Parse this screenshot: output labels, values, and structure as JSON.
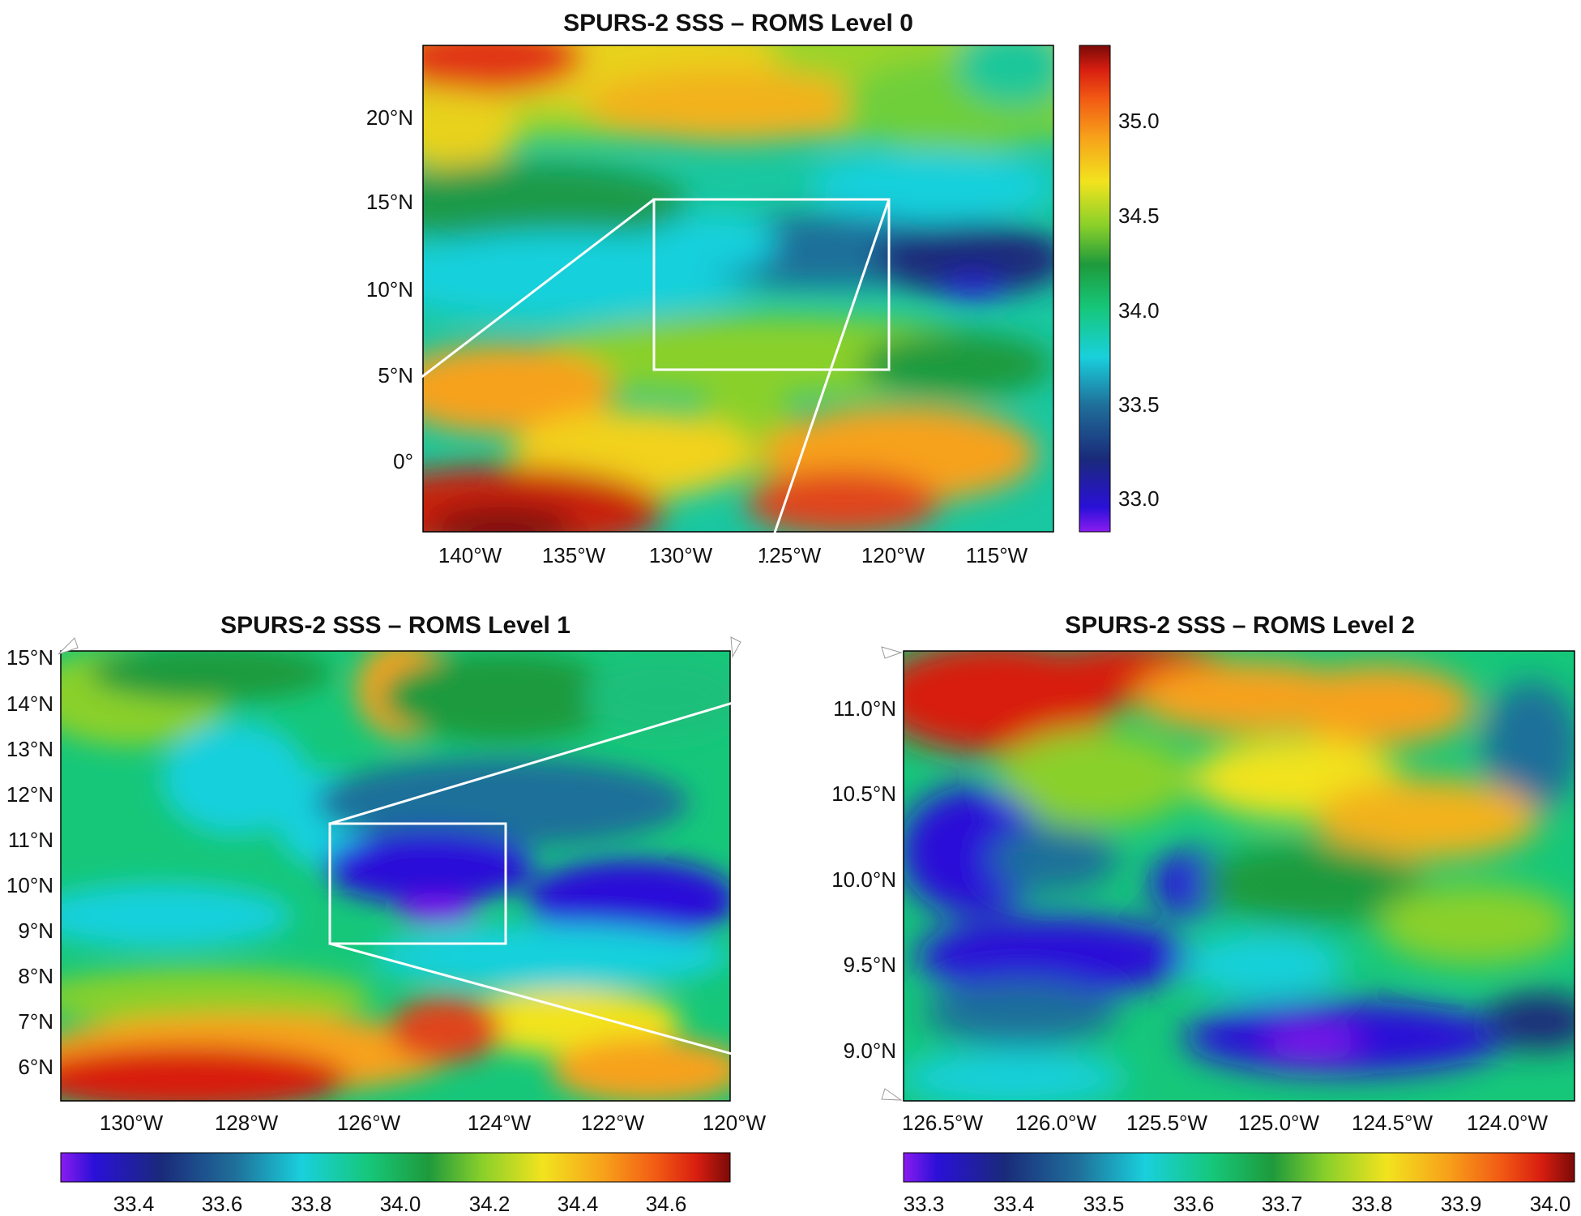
{
  "panels": [
    {
      "id": "level0",
      "title": "SPURS-2 SSS – ROMS Level 0",
      "lon_ticks": [
        "140°W",
        "135°W",
        "130°W",
        "125°W",
        "120°W",
        "115°W"
      ],
      "lat_ticks": [
        "20°N",
        "15°N",
        "10°N",
        "5°N",
        "0°"
      ],
      "colorbar": {
        "orientation": "vertical",
        "labels": [
          "35.0",
          "34.5",
          "34.0",
          "33.5",
          "33.0"
        ]
      }
    },
    {
      "id": "level1",
      "title": "SPURS-2 SSS – ROMS Level 1",
      "lon_ticks": [
        "130°W",
        "128°W",
        "126°W",
        "124°W",
        "122°W",
        "120°W"
      ],
      "lat_ticks": [
        "15°N",
        "14°N",
        "13°N",
        "12°N",
        "11°N",
        "10°N",
        "9°N",
        "8°N",
        "7°N",
        "6°N"
      ],
      "colorbar": {
        "orientation": "horizontal",
        "labels": [
          "33.4",
          "33.6",
          "33.8",
          "34.0",
          "34.2",
          "34.4",
          "34.6"
        ]
      }
    },
    {
      "id": "level2",
      "title": "SPURS-2 SSS – ROMS Level 2",
      "lon_ticks": [
        "126.5°W",
        "126.0°W",
        "125.5°W",
        "125.0°W",
        "124.5°W",
        "124.0°W"
      ],
      "lat_ticks": [
        "11.0°N",
        "10.5°N",
        "10.0°N",
        "9.5°N",
        "9.0°N"
      ],
      "colorbar": {
        "orientation": "horizontal",
        "labels": [
          "33.3",
          "33.4",
          "33.5",
          "33.6",
          "33.7",
          "33.8",
          "33.9",
          "34.0"
        ]
      }
    }
  ],
  "colormap": [
    "#8a1cf0",
    "#2a10d8",
    "#1a2a7a",
    "#1f6f9a",
    "#19d0dc",
    "#16c77a",
    "#1e9a3c",
    "#8ad02a",
    "#f2e31e",
    "#f7a21a",
    "#f25a14",
    "#d81e10",
    "#7a0a08"
  ]
}
